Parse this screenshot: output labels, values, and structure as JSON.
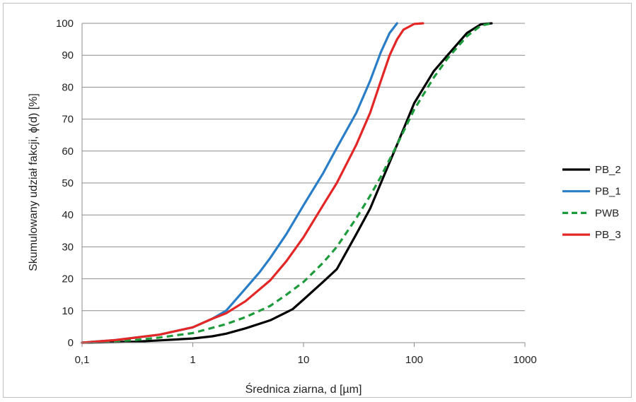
{
  "chart_data": {
    "type": "line",
    "title": "",
    "xlabel": "Średnica ziarna, d [µm]",
    "ylabel": "Skumulowany udział fakcji, ϕ(d) [%]",
    "xscale": "log",
    "xlim": [
      0.1,
      1000
    ],
    "ylim": [
      0,
      100
    ],
    "grid": "horizontal",
    "legend_position": "right",
    "x_tick_labels": [
      "0,1",
      "1",
      "10",
      "100",
      "1000"
    ],
    "y_tick_labels": [
      "0",
      "10",
      "20",
      "30",
      "40",
      "50",
      "60",
      "70",
      "80",
      "90",
      "100"
    ],
    "series": [
      {
        "name": "PB_2",
        "color": "#000000",
        "dash": "solid",
        "points": [
          [
            0.1,
            0
          ],
          [
            0.3,
            0.3
          ],
          [
            0.5,
            0.7
          ],
          [
            1,
            1.3
          ],
          [
            1.5,
            2
          ],
          [
            2,
            2.8
          ],
          [
            3,
            4.5
          ],
          [
            5,
            7
          ],
          [
            7,
            9.5
          ],
          [
            8,
            10.5
          ],
          [
            10,
            13.5
          ],
          [
            15,
            19
          ],
          [
            20,
            23
          ],
          [
            30,
            34
          ],
          [
            40,
            42
          ],
          [
            50,
            50
          ],
          [
            70,
            62
          ],
          [
            100,
            75
          ],
          [
            150,
            85
          ],
          [
            200,
            90
          ],
          [
            300,
            97
          ],
          [
            400,
            99.7
          ],
          [
            500,
            100
          ]
        ]
      },
      {
        "name": "PB_1",
        "color": "#2a7ec8",
        "dash": "solid",
        "points": [
          [
            0.1,
            0
          ],
          [
            0.2,
            0.8
          ],
          [
            0.5,
            2.5
          ],
          [
            1,
            4.8
          ],
          [
            1.5,
            7.5
          ],
          [
            2,
            10
          ],
          [
            3,
            17
          ],
          [
            4,
            22
          ],
          [
            5,
            26.5
          ],
          [
            7,
            34
          ],
          [
            10,
            43
          ],
          [
            15,
            53
          ],
          [
            20,
            61
          ],
          [
            30,
            72
          ],
          [
            40,
            82
          ],
          [
            50,
            91
          ],
          [
            60,
            97
          ],
          [
            70,
            100
          ]
        ]
      },
      {
        "name": "PWB",
        "color": "#1e9b3c",
        "dash": "dashed",
        "points": [
          [
            0.1,
            0
          ],
          [
            0.3,
            0.8
          ],
          [
            0.5,
            1.6
          ],
          [
            1,
            3
          ],
          [
            2,
            5.8
          ],
          [
            3,
            8
          ],
          [
            5,
            11.5
          ],
          [
            7,
            15
          ],
          [
            10,
            19
          ],
          [
            15,
            25
          ],
          [
            20,
            30
          ],
          [
            30,
            39
          ],
          [
            40,
            46
          ],
          [
            50,
            52
          ],
          [
            70,
            62
          ],
          [
            100,
            73
          ],
          [
            150,
            83
          ],
          [
            200,
            89
          ],
          [
            300,
            96
          ],
          [
            400,
            99.3
          ],
          [
            500,
            100
          ]
        ]
      },
      {
        "name": "PB_3",
        "color": "#e32626",
        "dash": "solid",
        "points": [
          [
            0.1,
            0
          ],
          [
            0.2,
            0.8
          ],
          [
            0.5,
            2.5
          ],
          [
            1,
            4.8
          ],
          [
            1.5,
            7.5
          ],
          [
            2,
            9.2
          ],
          [
            3,
            13
          ],
          [
            5,
            19.5
          ],
          [
            7,
            25.5
          ],
          [
            10,
            33
          ],
          [
            15,
            43
          ],
          [
            20,
            50
          ],
          [
            30,
            62
          ],
          [
            40,
            72
          ],
          [
            50,
            82
          ],
          [
            60,
            90
          ],
          [
            70,
            95
          ],
          [
            80,
            98
          ],
          [
            100,
            99.8
          ],
          [
            120,
            100
          ]
        ]
      }
    ]
  }
}
